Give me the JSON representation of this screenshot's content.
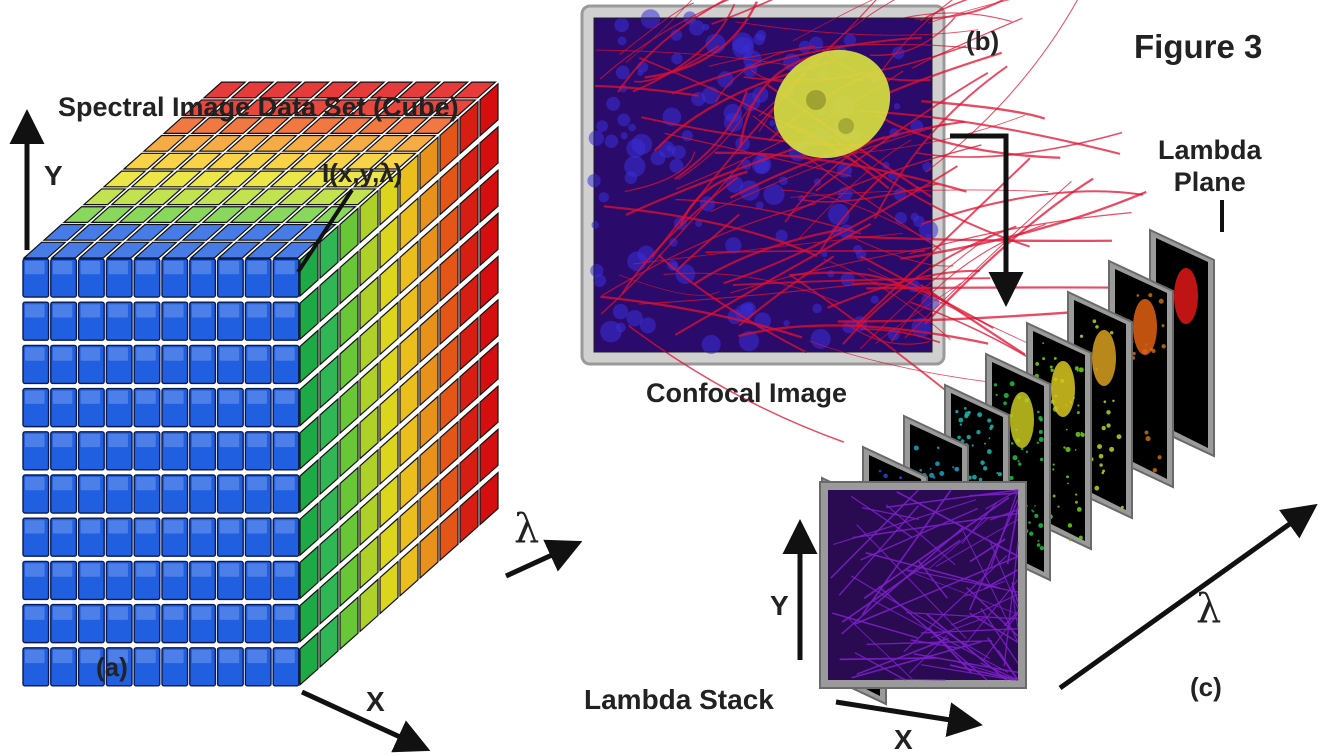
{
  "labels": {
    "cube_title": "Spectral Image Data Set (Cube)",
    "panel_a": "(a)",
    "panel_b": "(b)",
    "panel_c": "(c)",
    "figure": "Figure 3",
    "confocal": "Confocal Image",
    "lambda_stack": "Lambda Stack",
    "lambda_plane_1": "Lambda",
    "lambda_plane_2": "Plane",
    "intensity": "I(x,y,λ)",
    "cube_axis_y": "Y",
    "cube_axis_x": "X",
    "cube_axis_lambda": "λ",
    "stack_axis_y": "Y",
    "stack_axis_x": "X",
    "stack_axis_lambda": "λ"
  },
  "cube": {
    "columns": 10,
    "rows": 10,
    "depth": 10,
    "front_color": "#1f5fe0",
    "side_gradient": [
      "#1fb24a",
      "#34c05a",
      "#6fd03a",
      "#b6dc2a",
      "#e8e020",
      "#f6c81e",
      "#f49a1c",
      "#ef5a18",
      "#e22014",
      "#e01010"
    ]
  },
  "confocal_image": {
    "colors": {
      "background": "#2a0a6a",
      "fibers": "#e01030",
      "nuclei_dots": "#3a30d8",
      "nucleus": "#d8e040"
    }
  },
  "stack": {
    "plane_colors": [
      "#7a20c8",
      "#1e4ad0",
      "#1aa0c8",
      "#18b8b0",
      "#20c040",
      "#70d020",
      "#b0d820",
      "#c07010",
      "#d02010"
    ],
    "nucleus_colors": [
      "",
      "",
      "",
      "",
      "#c8c820",
      "#d8c820",
      "#d8a020",
      "#e06010",
      "#e01818"
    ]
  }
}
